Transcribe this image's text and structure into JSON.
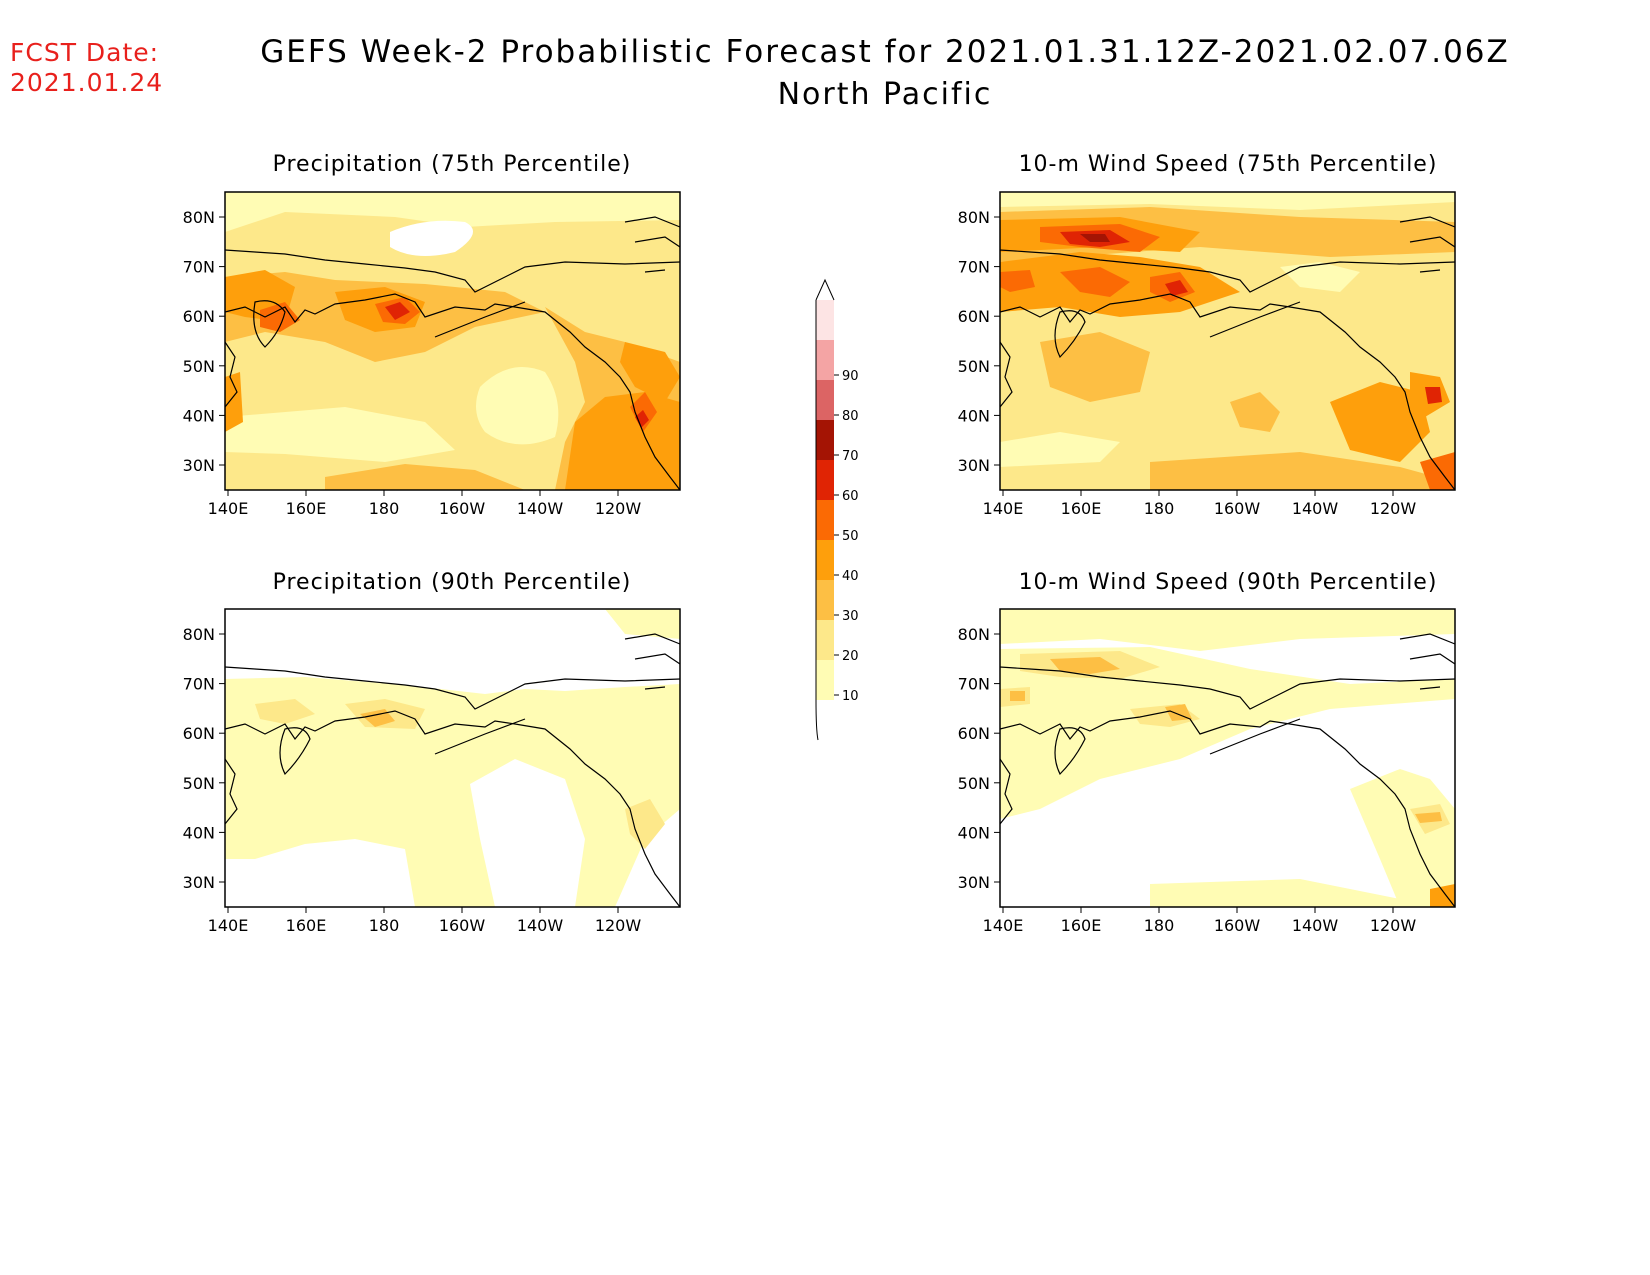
{
  "header": {
    "fcst_label": "FCST Date:",
    "fcst_date": "2021.01.24",
    "title": "GEFS Week-2 Probabilistic Forecast for 2021.01.31.12Z-2021.02.07.06Z",
    "region": "North Pacific"
  },
  "colors": {
    "c10": "#fffcb4",
    "c20": "#fde88a",
    "c30": "#fdbf44",
    "c40": "#fe9f0c",
    "c50": "#fb6a04",
    "c60": "#e02404",
    "c70": "#a41404",
    "c80": "#dc6464",
    "c90": "#f4a4a4",
    "c100": "#fde4e4"
  },
  "colorbar": {
    "levels": [
      "10",
      "20",
      "30",
      "40",
      "50",
      "60",
      "70",
      "80",
      "90"
    ]
  },
  "axes": {
    "x_ticks": [
      "140E",
      "160E",
      "180",
      "160W",
      "140W",
      "120W"
    ],
    "y_ticks": [
      "80N",
      "70N",
      "60N",
      "50N",
      "40N",
      "30N"
    ]
  },
  "panels": [
    {
      "id": "precip75",
      "title": "Precipitation (75th Percentile)"
    },
    {
      "id": "wind75",
      "title": "10-m Wind Speed (75th Percentile)"
    },
    {
      "id": "precip90",
      "title": "Precipitation (90th Percentile)"
    },
    {
      "id": "wind90",
      "title": "10-m Wind Speed (90th Percentile)"
    }
  ]
}
